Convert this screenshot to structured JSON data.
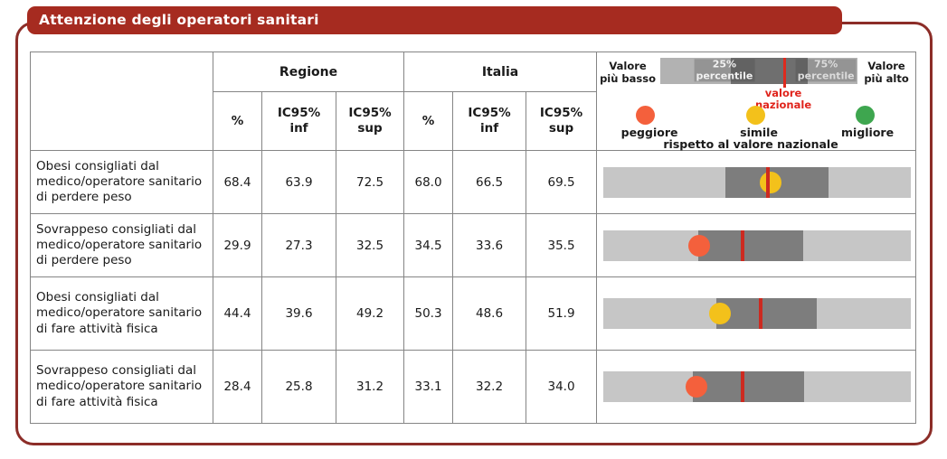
{
  "title": "Attenzione degli operatori sanitari",
  "colors": {
    "header_bg": "#a62b20",
    "frame_border": "#8c2d28",
    "table_border": "#858585",
    "bar_light_gray": "#c6c6c6",
    "bar_dark_gray": "#7d7d7d",
    "legend_bar_gray": "#b2b2b2",
    "legend_dark_gray": "#6f6f6f",
    "national_line_red": "#cc2a20",
    "national_text_red": "#e0241c",
    "dot_red": "#f4603c",
    "dot_yellow": "#f3c11b",
    "dot_green": "#3ea64f"
  },
  "legend": {
    "low_line1": "Valore",
    "low_line2": "più basso",
    "high_line1": "Valore",
    "high_line2": "più alto",
    "p25_line1": "25%",
    "p25_line2": "percentile",
    "p75_line1": "75%",
    "p75_line2": "percentile",
    "national_line1": "valore",
    "national_line2": "nazionale",
    "worse": "peggiore",
    "similar": "simile",
    "better": "migliore",
    "compared_to": "rispetto al valore nazionale"
  },
  "table": {
    "headers": {
      "regione": "Regione",
      "italia": "Italia",
      "pct": "%",
      "ic95": "IC95%",
      "inf": "inf",
      "sup": "sup"
    },
    "rows": [
      {
        "label": "Obesi consigliati dal medico/operatore sanitario di perdere peso",
        "regione_pct": "68.4",
        "regione_inf": "63.9",
        "regione_sup": "72.5",
        "italia_pct": "68.0",
        "italia_inf": "66.5",
        "italia_sup": "69.5",
        "confronto": "simile",
        "bar": {
          "box_left_pct": 39.7,
          "box_width_pct": 33.6,
          "line_left_pct": 52.8,
          "dot_left_pct": 54.3,
          "dot": "yellow"
        }
      },
      {
        "label": "Sovrappeso consigliati dal medico/operatore sanitario di perdere peso",
        "regione_pct": "29.9",
        "regione_inf": "27.3",
        "regione_sup": "32.5",
        "italia_pct": "34.5",
        "italia_inf": "33.6",
        "italia_sup": "35.5",
        "confronto": "peggiore",
        "bar": {
          "box_left_pct": 30.9,
          "box_width_pct": 34.1,
          "line_left_pct": 44.8,
          "dot_left_pct": 31.1,
          "dot": "red"
        }
      },
      {
        "label": "Obesi consigliati dal medico/operatore sanitario di fare attività fisica",
        "regione_pct": "44.4",
        "regione_inf": "39.6",
        "regione_sup": "49.2",
        "italia_pct": "50.3",
        "italia_inf": "48.6",
        "italia_sup": "51.9",
        "confronto": "simile",
        "bar": {
          "box_left_pct": 36.7,
          "box_width_pct": 32.7,
          "line_left_pct": 50.6,
          "dot_left_pct": 38.0,
          "dot": "yellow"
        }
      },
      {
        "label": "Sovrappeso consigliati dal medico/operatore sanitario di fare attività fisica",
        "regione_pct": "28.4",
        "regione_inf": "25.8",
        "regione_sup": "31.2",
        "italia_pct": "33.1",
        "italia_inf": "32.2",
        "italia_sup": "34.0",
        "confronto": "peggiore",
        "bar": {
          "box_left_pct": 29.2,
          "box_width_pct": 36.1,
          "line_left_pct": 44.8,
          "dot_left_pct": 30.4,
          "dot": "red"
        }
      }
    ]
  },
  "chart_data": {
    "type": "table",
    "title": "Attenzione degli operatori sanitari",
    "row_labels": [
      "Obesi consigliati dal medico/operatore sanitario di perdere peso",
      "Sovrappeso consigliati dal medico/operatore sanitario di perdere peso",
      "Obesi consigliati dal medico/operatore sanitario di fare attività fisica",
      "Sovrappeso consigliati dal medico/operatore sanitario di fare attività fisica"
    ],
    "series": [
      {
        "name": "Regione %",
        "values": [
          68.4,
          29.9,
          44.4,
          28.4
        ]
      },
      {
        "name": "Regione IC95% inf",
        "values": [
          63.9,
          27.3,
          39.6,
          25.8
        ]
      },
      {
        "name": "Regione IC95% sup",
        "values": [
          72.5,
          32.5,
          49.2,
          31.2
        ]
      },
      {
        "name": "Italia %",
        "values": [
          68.0,
          34.5,
          50.3,
          33.1
        ]
      },
      {
        "name": "Italia IC95% inf",
        "values": [
          66.5,
          33.6,
          48.6,
          32.2
        ]
      },
      {
        "name": "Italia IC95% sup",
        "values": [
          69.5,
          35.5,
          51.9,
          34.0
        ]
      }
    ],
    "confronto_vs_valore_nazionale": [
      "simile",
      "peggiore",
      "simile",
      "peggiore"
    ],
    "legend_note": "punti colorati: peggiore / simile / migliore rispetto al valore nazionale; banda scura = 25%-75% percentile; linea rossa = valore nazionale"
  }
}
